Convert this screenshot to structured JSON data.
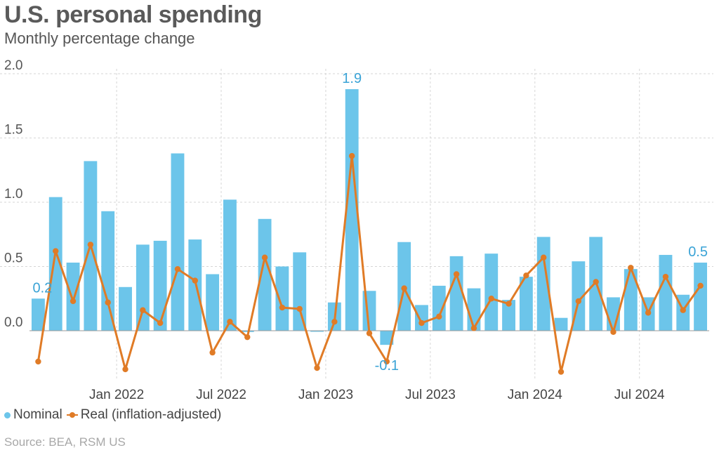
{
  "chart_data": {
    "type": "bar+line",
    "title": "U.S. personal spending",
    "subtitle": "Monthly percentage change",
    "source": "Source: BEA, RSM US",
    "ylim": [
      -0.35,
      2.0
    ],
    "yticks": [
      "2.0",
      "1.5",
      "1.0",
      "0.5",
      "0.0"
    ],
    "ytick_values": [
      2.0,
      1.5,
      1.0,
      0.5,
      0.0
    ],
    "xtick_labels": [
      {
        "label": "Jan 2022",
        "index": 5
      },
      {
        "label": "Jul 2022",
        "index": 11
      },
      {
        "label": "Jan 2023",
        "index": 17
      },
      {
        "label": "Jul 2023",
        "index": 23
      },
      {
        "label": "Jan 2024",
        "index": 29
      },
      {
        "label": "Jul 2024",
        "index": 35
      }
    ],
    "grid": true,
    "categories": [
      "Aug 2021",
      "Sep 2021",
      "Oct 2021",
      "Nov 2021",
      "Dec 2021",
      "Jan 2022",
      "Feb 2022",
      "Mar 2022",
      "Apr 2022",
      "May 2022",
      "Jun 2022",
      "Jul 2022",
      "Aug 2022",
      "Sep 2022",
      "Oct 2022",
      "Nov 2022",
      "Dec 2022",
      "Jan 2023",
      "Feb 2023",
      "Mar 2023",
      "Apr 2023",
      "May 2023",
      "Jun 2023",
      "Jul 2023",
      "Aug 2023",
      "Sep 2023",
      "Oct 2023",
      "Nov 2023",
      "Dec 2023",
      "Jan 2024",
      "Feb 2024",
      "Mar 2024",
      "Apr 2024",
      "May 2024",
      "Jun 2024",
      "Jul 2024",
      "Aug 2024",
      "Sep 2024",
      "Oct 2024"
    ],
    "series": [
      {
        "name": "Nominal",
        "type": "bar",
        "color": "#6cc5ea",
        "values": [
          0.25,
          1.04,
          0.53,
          1.32,
          0.93,
          0.34,
          0.67,
          0.7,
          1.38,
          0.71,
          0.44,
          1.02,
          -0.01,
          0.87,
          0.5,
          0.61,
          -0.005,
          0.22,
          1.88,
          0.31,
          -0.11,
          0.69,
          0.2,
          0.35,
          0.58,
          0.33,
          0.6,
          0.24,
          0.42,
          0.73,
          0.1,
          0.54,
          0.73,
          0.26,
          0.48,
          0.26,
          0.59,
          0.28,
          0.53
        ]
      },
      {
        "name": "Real (inflation-adjusted)",
        "type": "line",
        "color": "#e07b26",
        "values": [
          -0.24,
          0.62,
          0.23,
          0.67,
          0.22,
          -0.3,
          0.16,
          0.06,
          0.48,
          0.39,
          -0.17,
          0.07,
          -0.05,
          0.57,
          0.18,
          0.17,
          -0.29,
          0.07,
          1.36,
          -0.02,
          -0.24,
          0.33,
          0.06,
          0.11,
          0.44,
          0.02,
          0.25,
          0.21,
          0.43,
          0.57,
          -0.32,
          0.23,
          0.38,
          -0.01,
          0.49,
          0.14,
          0.42,
          0.16,
          0.35
        ]
      }
    ],
    "annotations": [
      {
        "text": "0.2",
        "index": 0
      },
      {
        "text": "1.9",
        "index": 18
      },
      {
        "text": "-0.1",
        "index": 20
      },
      {
        "text": "0.5",
        "index": 38
      }
    ]
  },
  "legend": {
    "nominal_label": "Nominal",
    "real_label": "Real (inflation-adjusted)"
  },
  "colors": {
    "nominal": "#6cc5ea",
    "real": "#e07b26",
    "annotation": "#3aa3d6"
  }
}
